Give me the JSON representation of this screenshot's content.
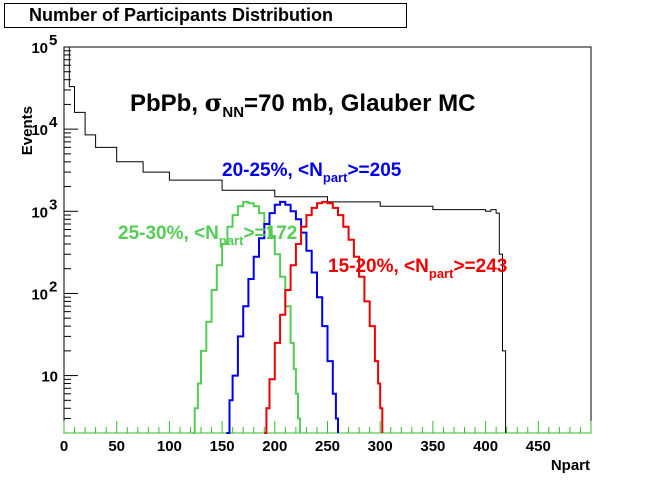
{
  "chart_data": {
    "type": "line",
    "title": "Number of Participants Distribution",
    "xlabel": "Npart",
    "ylabel": "Events",
    "yscale": "log",
    "xlim": [
      0,
      500
    ],
    "ylim": [
      2,
      100000
    ],
    "x_ticks": [
      "0",
      "50",
      "100",
      "150",
      "200",
      "250",
      "300",
      "350",
      "400",
      "450"
    ],
    "y_ticks": [
      {
        "value": 10,
        "base": "10",
        "exp": ""
      },
      {
        "value": 100,
        "base": "10",
        "exp": "2"
      },
      {
        "value": 1000,
        "base": "10",
        "exp": "3"
      },
      {
        "value": 10000,
        "base": "10",
        "exp": "4"
      },
      {
        "value": 100000,
        "base": "10",
        "exp": "5"
      }
    ],
    "header_text": {
      "pre": "PbPb,  ",
      "sigma": "σ",
      "sub": "NN",
      "post": "=70 mb, Glauber MC"
    },
    "series": [
      {
        "color": "#000000",
        "x": [
          2,
          5,
          10,
          20,
          30,
          50,
          75,
          100,
          150,
          200,
          250,
          300,
          350,
          400,
          405,
          410,
          413,
          416,
          419
        ],
        "y": [
          100000,
          33000,
          16000,
          8500,
          6000,
          4000,
          3000,
          2400,
          1800,
          1500,
          1300,
          1150,
          1050,
          1000,
          1050,
          950,
          300,
          20,
          2
        ]
      },
      {
        "color": "#55cc55",
        "x": [
          122,
          124,
          127,
          130,
          135,
          140,
          145,
          150,
          155,
          160,
          165,
          170,
          175,
          180,
          185,
          190,
          195,
          200,
          205,
          210,
          215,
          218,
          220,
          222,
          224
        ],
        "y": [
          2,
          4,
          8,
          20,
          45,
          110,
          220,
          400,
          650,
          900,
          1150,
          1300,
          1250,
          1150,
          950,
          700,
          500,
          300,
          160,
          70,
          25,
          12,
          6,
          3,
          2
        ]
      },
      {
        "color": "#0000ee",
        "x": [
          154,
          157,
          160,
          165,
          170,
          175,
          180,
          185,
          190,
          195,
          200,
          205,
          210,
          215,
          220,
          225,
          230,
          235,
          240,
          245,
          250,
          255,
          258,
          260
        ],
        "y": [
          2,
          5,
          10,
          30,
          70,
          150,
          280,
          470,
          700,
          950,
          1200,
          1300,
          1200,
          1000,
          800,
          550,
          330,
          180,
          90,
          40,
          15,
          6,
          3,
          2
        ]
      },
      {
        "color": "#ee0000",
        "x": [
          190,
          192,
          195,
          200,
          205,
          210,
          215,
          220,
          225,
          230,
          235,
          240,
          245,
          250,
          255,
          260,
          265,
          270,
          275,
          280,
          285,
          290,
          295,
          298,
          300,
          302
        ],
        "y": [
          2,
          4,
          9,
          25,
          55,
          110,
          220,
          400,
          650,
          900,
          1100,
          1250,
          1300,
          1250,
          1100,
          900,
          650,
          450,
          280,
          160,
          80,
          40,
          15,
          8,
          4,
          2
        ]
      }
    ],
    "annotations": [
      {
        "text": "20-25%, <N",
        "sub": "part",
        "post": ">=205",
        "color": "#0000ee"
      },
      {
        "text": "25-30%, <N",
        "sub": "part",
        "post": ">=172",
        "color": "#55cc55"
      },
      {
        "text": "15-20%, <N",
        "sub": "part",
        "post": ">=243",
        "color": "#ee0000"
      }
    ]
  }
}
